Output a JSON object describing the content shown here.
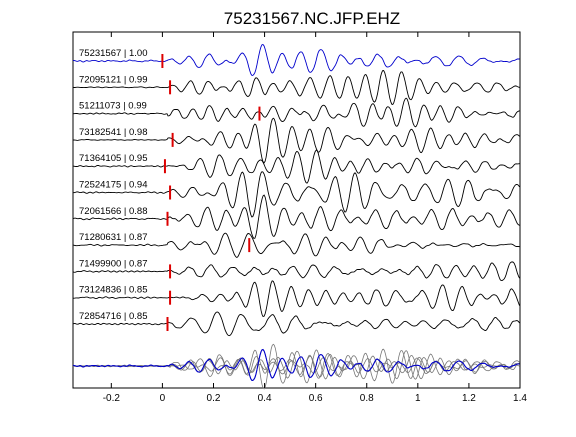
{
  "chart_data": {
    "type": "line",
    "title": "75231567.NC.JFP.EHZ",
    "xlabel": "",
    "ylabel": "",
    "xlim": [
      -0.35,
      1.4
    ],
    "xticks": [
      -0.2,
      0,
      0.2,
      0.4,
      0.6,
      0.8,
      1,
      1.2,
      1.4
    ],
    "xtick_labels": [
      "-0.2",
      "0",
      "0.2",
      "0.4",
      "0.6",
      "0.8",
      "1",
      "1.2",
      "1.4"
    ],
    "grid": false,
    "traces": [
      {
        "label": "75231567 | 1.00",
        "pick": 0.0,
        "color": "#0000cc"
      },
      {
        "label": "72095121 | 0.99",
        "pick": 0.03,
        "color": "#000000"
      },
      {
        "label": "51211073 | 0.99",
        "pick": 0.38,
        "color": "#000000"
      },
      {
        "label": "73182541 | 0.98",
        "pick": 0.04,
        "color": "#000000"
      },
      {
        "label": "71364105 | 0.95",
        "pick": 0.01,
        "color": "#000000"
      },
      {
        "label": "72524175 | 0.94",
        "pick": 0.03,
        "color": "#000000"
      },
      {
        "label": "72061566 | 0.88",
        "pick": 0.02,
        "color": "#000000"
      },
      {
        "label": "71280631 | 0.87",
        "pick": 0.34,
        "color": "#000000"
      },
      {
        "label": "71499900 | 0.87",
        "pick": 0.03,
        "color": "#000000"
      },
      {
        "label": "73124836 | 0.85",
        "pick": 0.03,
        "color": "#000000"
      },
      {
        "label": "72854716 | 0.85",
        "pick": 0.02,
        "color": "#000000"
      }
    ],
    "stack": {
      "colors": [
        "#0000cc",
        "#777777"
      ]
    },
    "pick_color": "#dd0000"
  }
}
